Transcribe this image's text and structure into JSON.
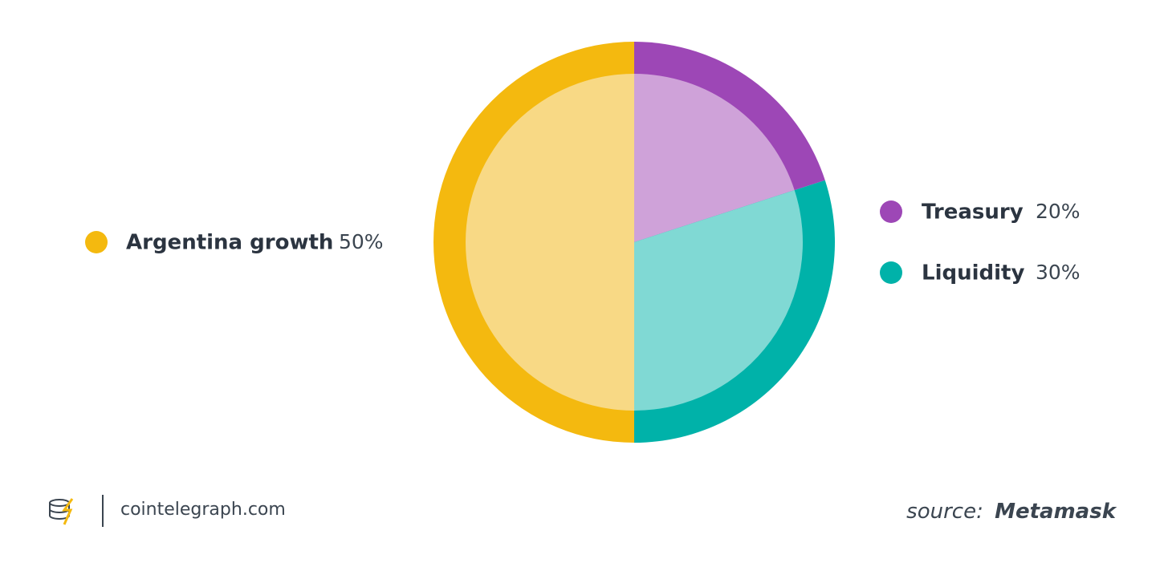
{
  "chart_data": {
    "type": "pie",
    "categories": [
      "Treasury",
      "Liquidity",
      "Argentina growth"
    ],
    "values": [
      20,
      30,
      50
    ],
    "value_labels": [
      "20%",
      "30%",
      "50%"
    ],
    "colors": [
      "#9d47b6",
      "#00b2a9",
      "#f4b90f"
    ],
    "inner_colors": [
      "#cfa2d9",
      "#80d9d4",
      "#f8d985"
    ],
    "brand": "cointelegraph.com",
    "source_prefix": "source:",
    "source": "Metamask"
  }
}
